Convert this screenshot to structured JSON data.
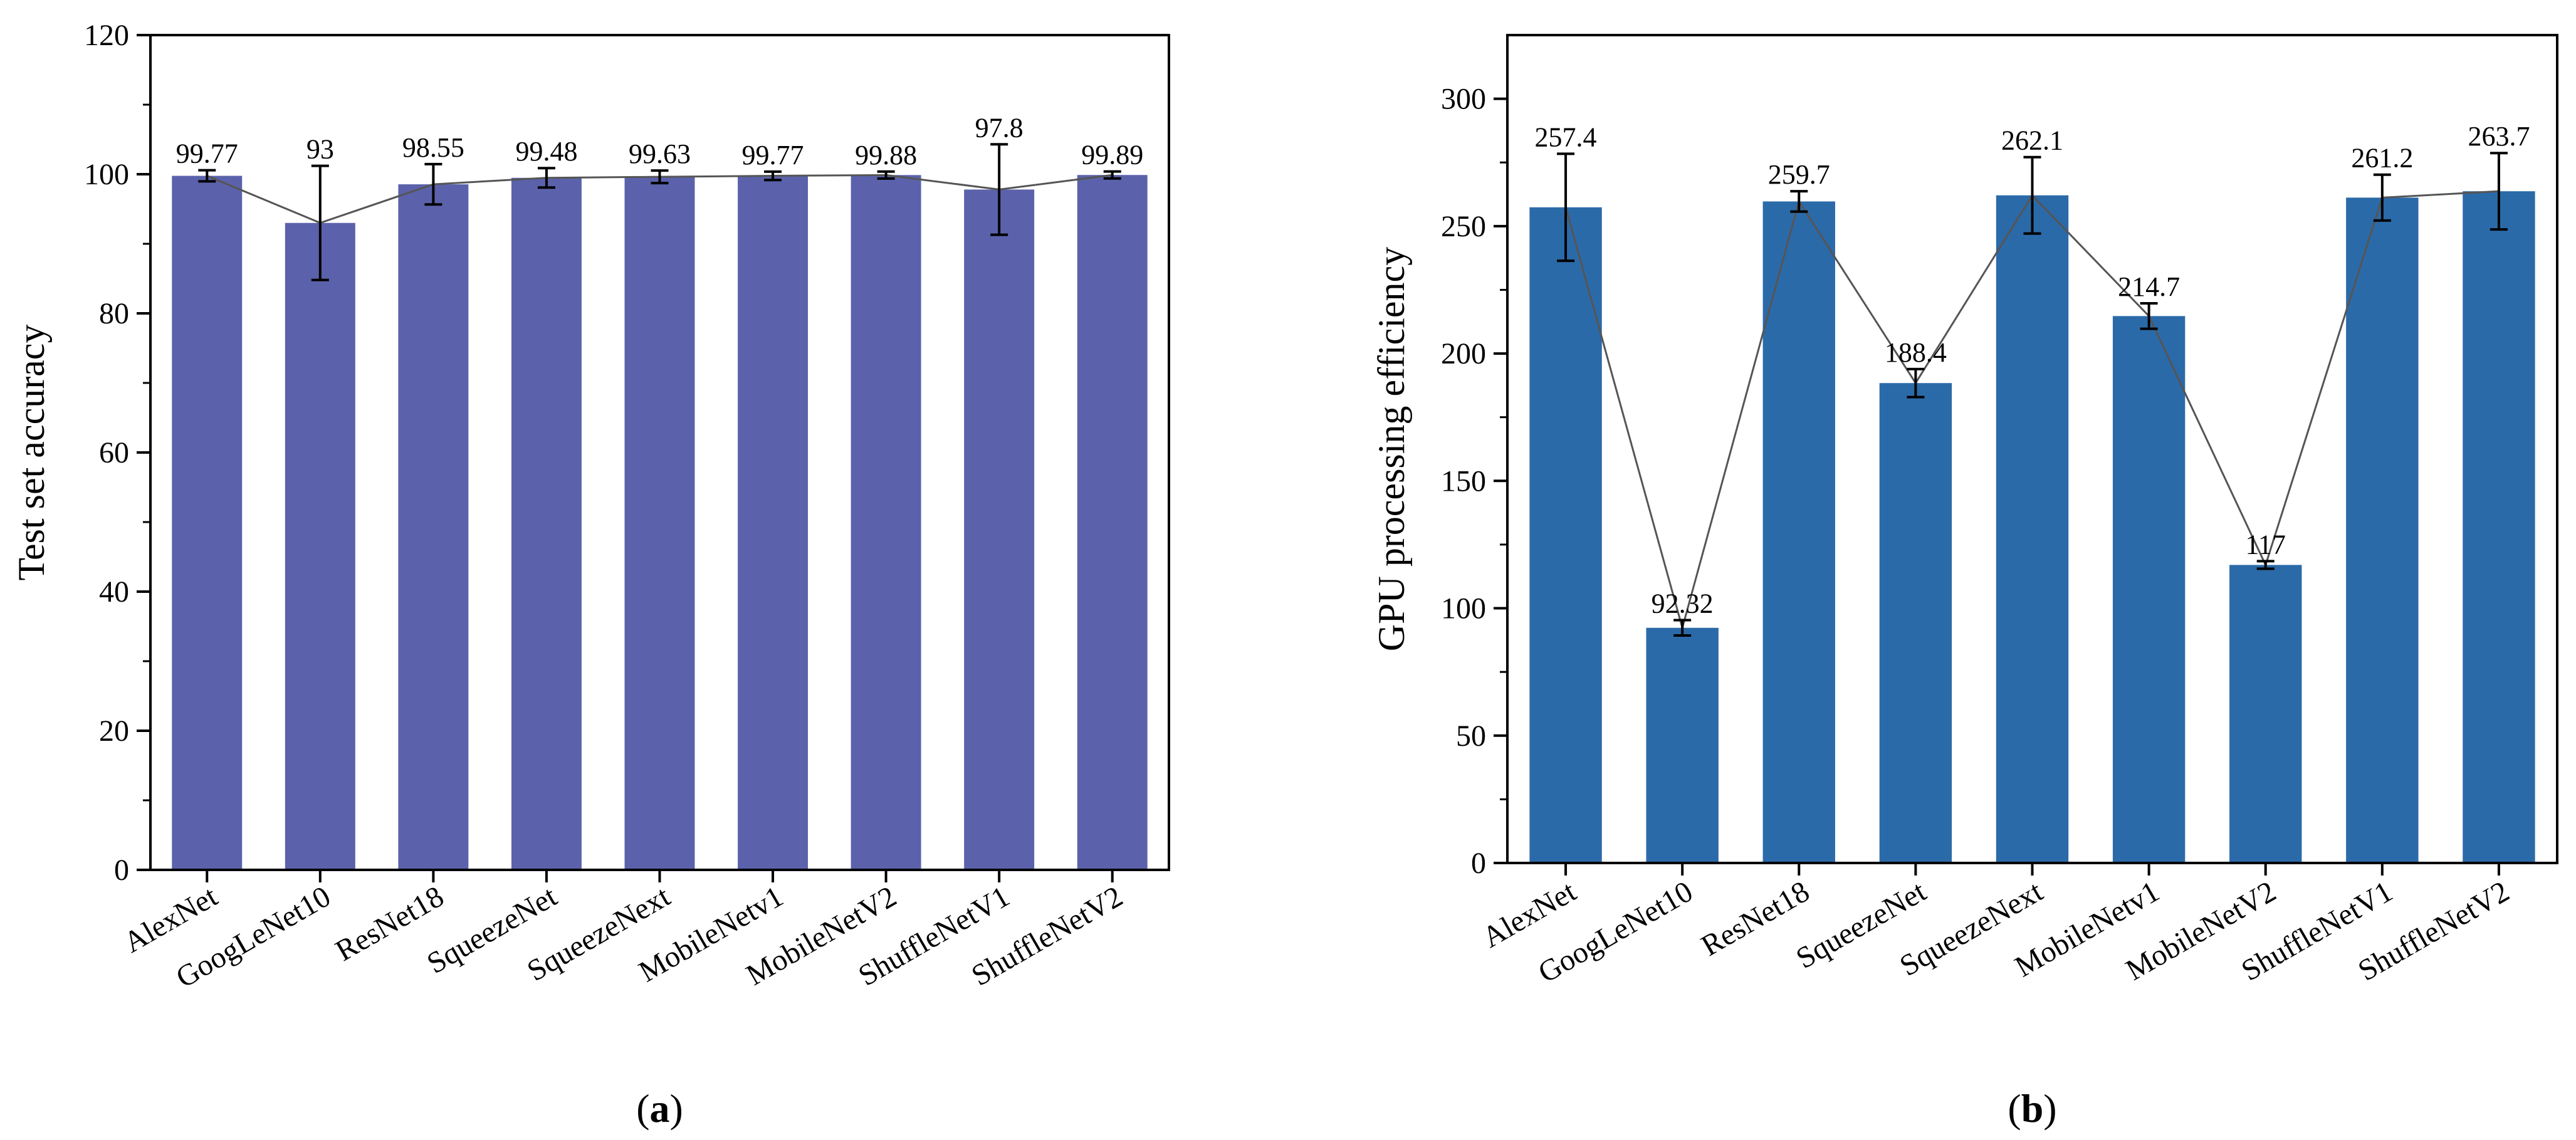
{
  "chart_data": [
    {
      "type": "bar",
      "panel": "a",
      "panel_label": "(a)",
      "title": "",
      "xlabel": "",
      "ylabel": "Test set accuracy",
      "ylim": [
        0,
        120
      ],
      "yticks": [
        0,
        20,
        40,
        60,
        80,
        100,
        120
      ],
      "grid": false,
      "bar_color": "#5b62ab",
      "line_color": "#555555",
      "categories": [
        "AlexNet",
        "GoogLeNet10",
        "ResNet18",
        "SqueezeNet",
        "SqueezeNext",
        "MobileNetv1",
        "MobileNetV2",
        "ShuffleNetV1",
        "ShuffleNetV2"
      ],
      "values": [
        99.77,
        93,
        98.55,
        99.48,
        99.63,
        99.77,
        99.88,
        97.8,
        99.89
      ],
      "labels": [
        "99.77",
        "93",
        "98.55",
        "99.48",
        "99.63",
        "99.77",
        "99.88",
        "97.8",
        "99.89"
      ],
      "errors": [
        0.8,
        8.2,
        2.9,
        1.4,
        0.9,
        0.6,
        0.5,
        6.5,
        0.5
      ]
    },
    {
      "type": "bar",
      "panel": "b",
      "panel_label": "(b)",
      "title": "",
      "xlabel": "",
      "ylabel": "GPU processing efficiency",
      "ylim": [
        0,
        325
      ],
      "yticks": [
        0,
        50,
        100,
        150,
        200,
        250,
        300
      ],
      "grid": false,
      "bar_color": "#2b6aa8",
      "line_color": "#555555",
      "categories": [
        "AlexNet",
        "GoogLeNet10",
        "ResNet18",
        "SqueezeNet",
        "SqueezeNext",
        "MobileNetv1",
        "MobileNetV2",
        "ShuffleNetV1",
        "ShuffleNetV2"
      ],
      "values": [
        257.4,
        92.32,
        259.7,
        188.4,
        262.1,
        214.7,
        117,
        261.2,
        263.7
      ],
      "labels": [
        "257.4",
        "92.32",
        "259.7",
        "188.4",
        "262.1",
        "214.7",
        "117",
        "261.2",
        "263.7"
      ],
      "errors": [
        21,
        3,
        4,
        5.5,
        15,
        5,
        1.5,
        9,
        15
      ]
    }
  ]
}
